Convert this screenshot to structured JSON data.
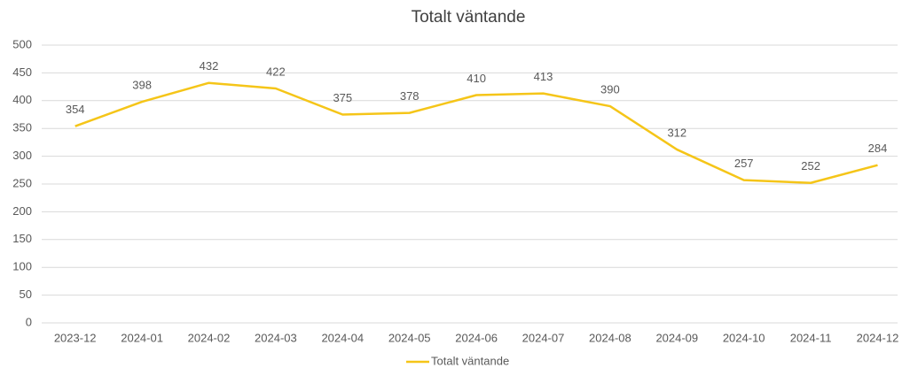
{
  "chart_data": {
    "type": "line",
    "title": "Totalt väntande",
    "categories": [
      "2023-12",
      "2024-01",
      "2024-02",
      "2024-03",
      "2024-04",
      "2024-05",
      "2024-06",
      "2024-07",
      "2024-08",
      "2024-09",
      "2024-10",
      "2024-11",
      "2024-12"
    ],
    "series": [
      {
        "name": "Totalt väntande",
        "color": "#f5c518",
        "values": [
          354,
          398,
          432,
          422,
          375,
          378,
          410,
          413,
          390,
          312,
          257,
          252,
          284
        ]
      }
    ],
    "ylim": [
      0,
      500
    ],
    "yticks": [
      0,
      50,
      100,
      150,
      200,
      250,
      300,
      350,
      400,
      450,
      500
    ],
    "grid": true,
    "legend": "bottom"
  }
}
